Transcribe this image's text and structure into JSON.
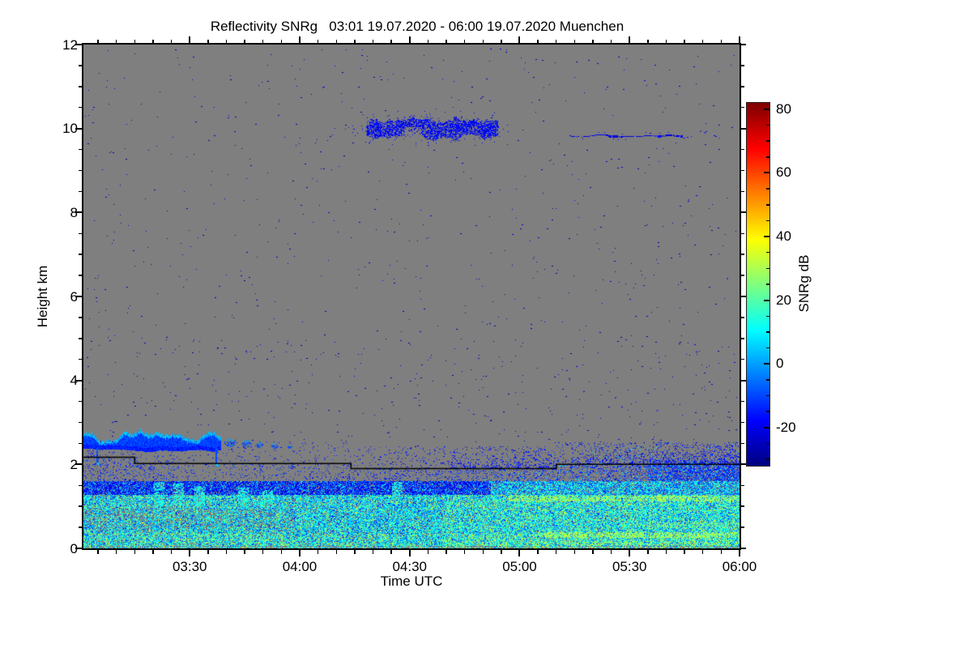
{
  "title": "Reflectivity SNRg   03:01 19.07.2020 - 06:00 19.07.2020 Muenchen",
  "axes": {
    "x": {
      "label": "Time UTC",
      "start_minutes": 181,
      "end_minutes": 360,
      "major_ticks": [
        {
          "m": 210,
          "label": "03:30"
        },
        {
          "m": 240,
          "label": "04:00"
        },
        {
          "m": 270,
          "label": "04:30"
        },
        {
          "m": 300,
          "label": "05:00"
        },
        {
          "m": 330,
          "label": "05:30"
        },
        {
          "m": 360,
          "label": "06:00"
        }
      ],
      "minor_step_minutes": 5
    },
    "y": {
      "label": "Height km",
      "min": 0,
      "max": 12,
      "major_ticks": [
        {
          "v": 12,
          "label": "12"
        },
        {
          "v": 10,
          "label": "10"
        },
        {
          "v": 8,
          "label": "8"
        },
        {
          "v": 6,
          "label": "6"
        },
        {
          "v": 4,
          "label": "4"
        },
        {
          "v": 2,
          "label": "2"
        },
        {
          "v": 0,
          "label": "0"
        }
      ],
      "minor_step": 0.5
    }
  },
  "colorbar": {
    "label": "SNRg dB",
    "colormap": "jet",
    "max": 82,
    "min": -32,
    "major_ticks": [
      {
        "v": 80,
        "label": "80"
      },
      {
        "v": 60,
        "label": "60"
      },
      {
        "v": 40,
        "label": "40"
      },
      {
        "v": 20,
        "label": "20"
      },
      {
        "v": 0,
        "label": "0"
      },
      {
        "v": -20,
        "label": "-20"
      }
    ],
    "minor_step": 5
  },
  "colors": {
    "page_bg": "#ffffff",
    "no_data_gray": "#7f7f7f",
    "frame": "#000000",
    "text": "#000000",
    "cloud_base_line": "#000000"
  },
  "render": {
    "seed": 1234567
  },
  "chart_data": {
    "type": "heatmap",
    "title": "Reflectivity SNRg",
    "station": "Muenchen",
    "date": "19.07.2020",
    "time_start_utc": "03:01",
    "time_end_utc": "06:00",
    "xlabel": "Time UTC",
    "ylabel": "Height km",
    "value_label": "SNRg dB",
    "value_range_db": [
      -32,
      82
    ],
    "height_range_km": [
      0,
      12
    ],
    "cloud_base_line_km": {
      "segments": [
        {
          "t0": 181,
          "t1": 195,
          "h": 2.18
        },
        {
          "t0": 195,
          "t1": 254,
          "h": 2.03
        },
        {
          "t0": 254,
          "t1": 310,
          "h": 1.91
        },
        {
          "t0": 310,
          "t1": 360,
          "h": 2.01
        }
      ]
    },
    "features": [
      {
        "id": "background-noise",
        "kind": "speckle",
        "t": [
          181,
          360
        ],
        "h": [
          0.15,
          11.9
        ],
        "count": 950,
        "db": [
          -30,
          -20
        ],
        "px": [
          1,
          2
        ]
      },
      {
        "id": "lower-extra-noise",
        "kind": "speckle",
        "t": [
          181,
          360
        ],
        "h": [
          2.2,
          5.0
        ],
        "count": 230,
        "db": [
          -30,
          -21
        ],
        "px": [
          1,
          2
        ]
      },
      {
        "id": "cirrus-cloud-10km",
        "kind": "cloud_band",
        "t": [
          258.5,
          294
        ],
        "h_center": 10.0,
        "h_half": 0.16,
        "edge_noise": 0.13,
        "density": 0.64,
        "db": [
          -23,
          -13
        ],
        "halo": {
          "count": 330,
          "spread_h": 0.5
        },
        "notch": {
          "t": [
            268.5,
            273
          ],
          "factor": 0.2
        },
        "top_bumps": {
          "t": [
            274,
            281
          ],
          "extra": 0.2
        },
        "lead_in": {
          "t": [
            252.5,
            258.5
          ],
          "p": 0.18
        }
      },
      {
        "id": "cirrus-wisp-9.8km",
        "kind": "thin_band",
        "t": [
          313.5,
          344.5
        ],
        "h": [
          9.79,
          9.88
        ],
        "density": 0.85,
        "db": [
          -24,
          -16
        ],
        "tail": {
          "t": [
            344.5,
            356.5
          ],
          "p": 0.1
        },
        "clump": {
          "t": [
            348.5,
            351
          ],
          "h": [
            9.88,
            9.97
          ],
          "p": 0.3
        }
      },
      {
        "id": "low-cloud-2.6km",
        "kind": "low_cloud",
        "t": [
          181,
          218.5
        ],
        "top": 2.68,
        "top_noise": 0.15,
        "bottom": 2.38,
        "bottom_noise": 0.07,
        "db_core": [
          -15,
          -6
        ],
        "db_top": [
          -2,
          8
        ],
        "top_rows_km": 0.07,
        "tendrils": [
          {
            "t": 184.7,
            "h_min": 2.05
          },
          {
            "t": 217.2,
            "h_min": 2.02
          }
        ],
        "tail_blobs": [
          {
            "t": 221.0,
            "h": 2.52,
            "rt": 1.6,
            "rh": 0.09
          },
          {
            "t": 225.5,
            "h": 2.5,
            "rt": 1.4,
            "rh": 0.08
          },
          {
            "t": 229.0,
            "h": 2.47,
            "rt": 1.0,
            "rh": 0.06
          },
          {
            "t": 233.0,
            "h": 2.44,
            "rt": 1.1,
            "rh": 0.05
          },
          {
            "t": 237.0,
            "h": 2.43,
            "rt": 0.8,
            "rh": 0.04
          }
        ]
      },
      {
        "id": "boundary-layer-field",
        "kind": "bl_field",
        "h_iter_top": 2.55,
        "dense_top_km": 1.3,
        "darkblue_band": [
          1.28,
          1.62
        ],
        "darkblue_frac_end": 0.62,
        "above_line_clusters": [
          {
            "t": [
              281,
              289
            ],
            "p": 0.28
          },
          {
            "t": [
              291,
              310
            ],
            "p": 0.33
          },
          {
            "t": [
              314,
              321
            ],
            "p": 0.3
          },
          {
            "t": [
              322,
              336
            ],
            "p": 0.35
          },
          {
            "t": [
              336,
              360
            ],
            "p": 0.55
          },
          {
            "t": [
              218,
              228
            ],
            "p": 0.08
          },
          {
            "t": [
              182,
              206
            ],
            "p": 0.1
          }
        ],
        "cluster_h_extent": 0.35,
        "streaks": [
          {
            "t0": 297,
            "h": [
              1.13,
              1.27
            ],
            "p": 0.5,
            "db": [
              26,
              33
            ]
          },
          {
            "t0": 305,
            "h": [
              0.26,
              0.4
            ],
            "p": 0.45,
            "db": [
              27,
              34
            ]
          },
          {
            "t0": 332,
            "h": [
              0.52,
              0.62
            ],
            "p": 0.28,
            "db": [
              24,
              30
            ]
          },
          {
            "t0": 310,
            "h": [
              0.08,
              0.16
            ],
            "p": 0.18,
            "db": [
              28,
              34
            ]
          }
        ],
        "plumes": [
          {
            "t": 201.5,
            "h": [
              1.0,
              1.6
            ]
          },
          {
            "t": 206.8,
            "h": [
              1.05,
              1.55
            ]
          },
          {
            "t": 212.6,
            "h": [
              1.0,
              1.5
            ]
          },
          {
            "t": 224.5,
            "h": [
              0.95,
              1.45
            ]
          },
          {
            "t": 231.2,
            "h": [
              1.0,
              1.4
            ]
          },
          {
            "t": 266.5,
            "h": [
              1.25,
              1.6
            ]
          }
        ],
        "plume_db": [
          10,
          18
        ],
        "plume_halfwidth_min": 1.4
      }
    ]
  }
}
